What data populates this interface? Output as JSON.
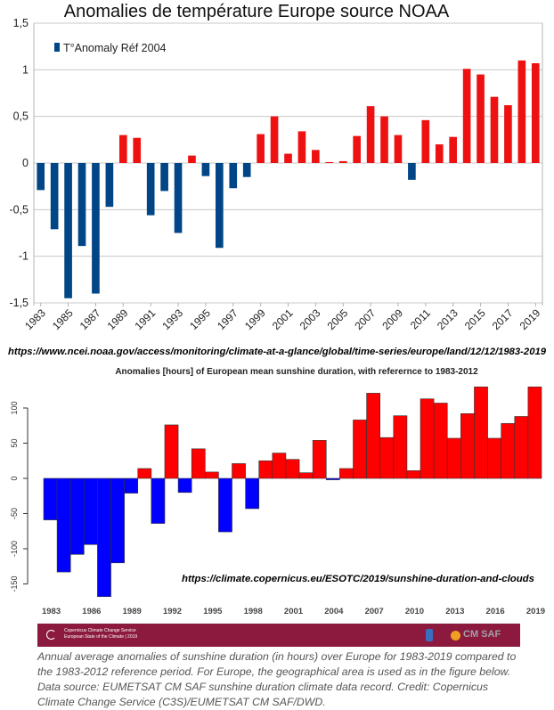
{
  "chart_data": [
    {
      "type": "bar",
      "title": "Anomalies de température Europe source NOAA",
      "legend": {
        "label": "T°Anomaly Réf 2004",
        "placement": "top-left"
      },
      "source_url": "https://www.ncei.noaa.gov/access/monitoring/climate-at-a-glance/global/time-series/europe/land/12/12/1983-2019",
      "xlabel": "",
      "ylabel": "",
      "ylim": [
        -1.5,
        1.5
      ],
      "yticks": [
        "-1,5",
        "-1",
        "-0,5",
        "0",
        "0,5",
        "1",
        "1,5"
      ],
      "ytick_values": [
        -1.5,
        -1,
        -0.5,
        0,
        0.5,
        1,
        1.5
      ],
      "xtick_labels": [
        "1983",
        "1985",
        "1987",
        "1989",
        "1991",
        "1993",
        "1995",
        "1997",
        "1999",
        "2001",
        "2003",
        "2005",
        "2007",
        "2009",
        "2011",
        "2013",
        "2015",
        "2017",
        "2019"
      ],
      "grid": true,
      "colors": {
        "negative": "#004586",
        "positive": "#ee1111"
      },
      "categories": [
        "1983",
        "1984",
        "1985",
        "1986",
        "1987",
        "1988",
        "1989",
        "1990",
        "1991",
        "1992",
        "1993",
        "1994",
        "1995",
        "1996",
        "1997",
        "1998",
        "1999",
        "2000",
        "2001",
        "2002",
        "2003",
        "2004",
        "2005",
        "2006",
        "2007",
        "2008",
        "2009",
        "2010",
        "2011",
        "2012",
        "2013",
        "2014",
        "2015",
        "2016",
        "2017",
        "2018",
        "2019"
      ],
      "values": [
        -0.29,
        -0.71,
        -1.45,
        -0.89,
        -1.4,
        -0.47,
        0.3,
        0.27,
        -0.56,
        -0.3,
        -0.75,
        0.08,
        -0.14,
        -0.91,
        -0.27,
        -0.15,
        0.31,
        0.5,
        0.1,
        0.34,
        0.14,
        0.01,
        0.02,
        0.29,
        0.61,
        0.5,
        0.3,
        -0.18,
        0.46,
        0.2,
        0.28,
        1.01,
        0.95,
        0.71,
        0.62,
        1.1,
        1.07
      ]
    },
    {
      "type": "bar",
      "title": "Anomalies [hours] of European mean sunshine duration, with referernce to 1983-2012",
      "source_url": "https://climate.copernicus.eu/ESOTC/2019/sunshine-duration-and-clouds",
      "xlabel": "",
      "ylabel": "",
      "ylim": [
        -170,
        135
      ],
      "yticks": [
        "-150",
        "-100",
        "-50",
        "0",
        "50",
        "100"
      ],
      "ytick_values": [
        -150,
        -100,
        -50,
        0,
        50,
        100
      ],
      "xtick_labels": [
        "1983",
        "1986",
        "1989",
        "1992",
        "1995",
        "1998",
        "2001",
        "2004",
        "2007",
        "2010",
        "2013",
        "2016",
        "2019"
      ],
      "grid": false,
      "colors": {
        "negative": "#0000ff",
        "positive": "#ff0000"
      },
      "categories": [
        "1983",
        "1984",
        "1985",
        "1986",
        "1987",
        "1988",
        "1989",
        "1990",
        "1991",
        "1992",
        "1993",
        "1994",
        "1995",
        "1996",
        "1997",
        "1998",
        "1999",
        "2000",
        "2001",
        "2002",
        "2003",
        "2004",
        "2005",
        "2006",
        "2007",
        "2008",
        "2009",
        "2010",
        "2011",
        "2012",
        "2013",
        "2014",
        "2015",
        "2016",
        "2017",
        "2018",
        "2019"
      ],
      "values": [
        -59,
        -133,
        -108,
        -94,
        -168,
        -120,
        -21,
        14,
        -64,
        76,
        -20,
        42,
        9,
        -76,
        21,
        -43,
        25,
        36,
        27,
        8,
        54,
        -2,
        14,
        83,
        121,
        58,
        89,
        11,
        113,
        107,
        57,
        92,
        130,
        57,
        78,
        88,
        130
      ]
    }
  ],
  "banner": {
    "line1": "Copernicus Climate Change Service",
    "line2": "European State of the Climate | 2019",
    "logo_right": "CM SAF",
    "logo_dwd": "DWD"
  },
  "caption": "Annual average anomalies of sunshine duration (in hours) over Europe for 1983-2019 compared to the 1983-2012 reference period. For Europe, the geographical area is used as in the figure below. Data source: EUMETSAT CM SAF sunshine duration climate data record. Credit: Copernicus Climate Change Service (C3S)/EUMETSAT CM SAF/DWD."
}
